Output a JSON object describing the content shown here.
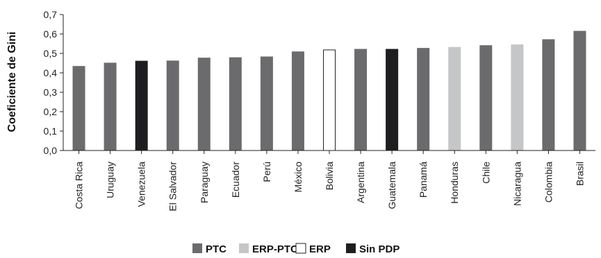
{
  "chart_data": {
    "type": "bar",
    "ylabel": "Coeficiente de Gini",
    "ylim": [
      0,
      0.7
    ],
    "yticks": [
      "0,0",
      "0,1",
      "0,2",
      "0,3",
      "0,4",
      "0,5",
      "0,6",
      "0,7"
    ],
    "categories": [
      "Costa Rica",
      "Uruguay",
      "Venezuela",
      "El Salvador",
      "Paraguay",
      "Ecuador",
      "Perú",
      "México",
      "Bolivia",
      "Argentina",
      "Guatemala",
      "Panamá",
      "Honduras",
      "Chile",
      "Nicaragua",
      "Colombia",
      "Brasil"
    ],
    "values": [
      0.435,
      0.452,
      0.462,
      0.463,
      0.478,
      0.48,
      0.484,
      0.51,
      0.518,
      0.523,
      0.523,
      0.528,
      0.533,
      0.542,
      0.546,
      0.573,
      0.616
    ],
    "groups": [
      "PTC",
      "PTC",
      "Sin PDP",
      "PTC",
      "PTC",
      "PTC",
      "PTC",
      "PTC",
      "ERP",
      "PTC",
      "Sin PDP",
      "PTC",
      "ERP-PTC",
      "PTC",
      "ERP-PTC",
      "PTC",
      "PTC"
    ],
    "legend": [
      {
        "name": "PTC",
        "color": "#6b6b6e"
      },
      {
        "name": "ERP-PTC",
        "color": "#c4c6c8"
      },
      {
        "name": "ERP",
        "color": "#ffffff"
      },
      {
        "name": "Sin PDP",
        "color": "#1e1e21"
      }
    ],
    "legend_position": "bottom-center",
    "grid": false
  }
}
